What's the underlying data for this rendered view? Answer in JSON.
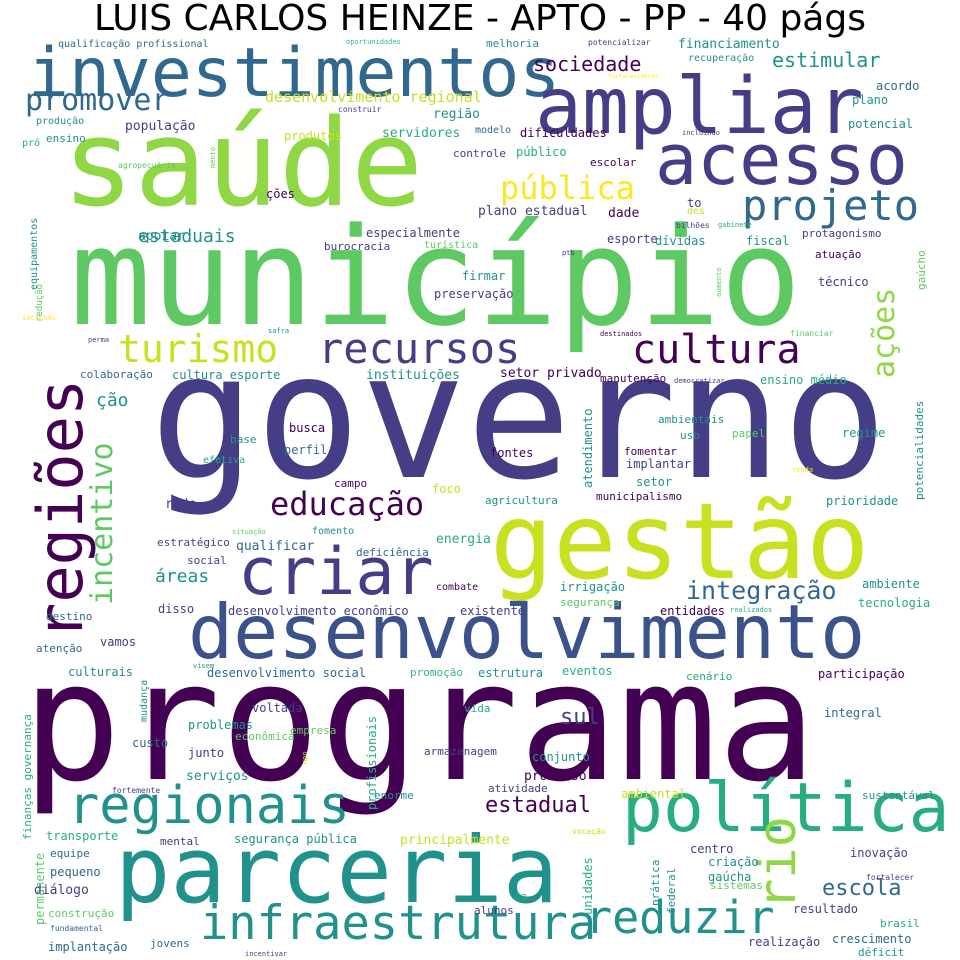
{
  "title": "LUIS CARLOS HEINZE - APTO - PP - 40 págs",
  "colors": {
    "c0": "#440154",
    "c1": "#433e85",
    "c2": "#31688e",
    "c3": "#21918c",
    "c4": "#27ad81",
    "c5": "#5ec962",
    "c6": "#8fd744",
    "c7": "#c8e020",
    "c8": "#fde725",
    "c9": "#35b779",
    "c10": "#3b528b"
  },
  "words": [
    {
      "t": "programa",
      "c": "c0"
    },
    {
      "t": "governo",
      "c": "c1"
    },
    {
      "t": "município",
      "c": "c5"
    },
    {
      "t": "saúde",
      "c": "c6"
    },
    {
      "t": "gestão",
      "c": "c7"
    },
    {
      "t": "parceria",
      "c": "c3"
    },
    {
      "t": "desenvolvimento",
      "c": "c10"
    },
    {
      "t": "investimentos",
      "c": "c2"
    },
    {
      "t": "ampliar",
      "c": "c1"
    },
    {
      "t": "acesso",
      "c": "c1"
    },
    {
      "t": "política",
      "c": "c4"
    },
    {
      "t": "criar",
      "c": "c1"
    },
    {
      "t": "regiões",
      "c": "c0"
    },
    {
      "t": "regionais",
      "c": "c3"
    },
    {
      "t": "infraestrutura",
      "c": "c3"
    },
    {
      "t": "reduzir",
      "c": "c3"
    },
    {
      "t": "projeto",
      "c": "c2"
    },
    {
      "t": "recursos",
      "c": "c1"
    },
    {
      "t": "cultura",
      "c": "c0"
    },
    {
      "t": "turismo",
      "c": "c7"
    },
    {
      "t": "educação",
      "c": "c0"
    },
    {
      "t": "pública",
      "c": "c8"
    },
    {
      "t": "promover",
      "c": "c2"
    },
    {
      "t": "incentivo",
      "c": "c5"
    },
    {
      "t": "ações",
      "c": "c6"
    },
    {
      "t": "rio",
      "c": "c6"
    },
    {
      "t": "integração",
      "c": "c2"
    },
    {
      "t": "estadual",
      "c": "c0"
    },
    {
      "t": "escola",
      "c": "c2"
    },
    {
      "t": "sul",
      "c": "c1"
    },
    {
      "t": "sociedade",
      "c": "c0"
    },
    {
      "t": "estimular",
      "c": "c3"
    },
    {
      "t": "estaduais",
      "c": "c3"
    },
    {
      "t": "áreas",
      "c": "c3"
    },
    {
      "t": "ção",
      "c": "c3"
    },
    {
      "t": "desenvolvimento regional",
      "c": "c7"
    },
    {
      "t": "financiamento",
      "c": "c3"
    },
    {
      "t": "população",
      "c": "c1"
    },
    {
      "t": "região",
      "c": "c3"
    },
    {
      "t": "servidores",
      "c": "c4"
    },
    {
      "t": "melhoria",
      "c": "c3"
    },
    {
      "t": "modelo",
      "c": "c2"
    },
    {
      "t": "dificuldades",
      "c": "c0"
    },
    {
      "t": "qualificação profissional",
      "c": "c2"
    },
    {
      "t": "oportunidades",
      "c": "c9"
    },
    {
      "t": "potencializar",
      "c": "c1"
    },
    {
      "t": "recuperação",
      "c": "c3"
    },
    {
      "t": "fortalecimento",
      "c": "c8"
    },
    {
      "t": "acordo",
      "c": "c2"
    },
    {
      "t": "plano",
      "c": "c3"
    },
    {
      "t": "potencial",
      "c": "c3"
    },
    {
      "t": "incluindo",
      "c": "c1"
    },
    {
      "t": "construir",
      "c": "c1"
    },
    {
      "t": "produtos",
      "c": "c7"
    },
    {
      "t": "produção",
      "c": "c3"
    },
    {
      "t": "ensino",
      "c": "c3"
    },
    {
      "t": "pró",
      "c": "c4"
    },
    {
      "t": "controle",
      "c": "c1"
    },
    {
      "t": "público",
      "c": "c4"
    },
    {
      "t": "escolar",
      "c": "c0"
    },
    {
      "t": "agropecuária",
      "c": "c5"
    },
    {
      "t": "mento",
      "c": "c5"
    },
    {
      "t": "ções",
      "c": "c0"
    },
    {
      "t": "plano estadual",
      "c": "c1"
    },
    {
      "t": "dade",
      "c": "c0"
    },
    {
      "t": "des",
      "c": "c7"
    },
    {
      "t": "to",
      "c": "c1"
    },
    {
      "t": "equipamentos",
      "c": "c3"
    },
    {
      "t": "apoiar",
      "c": "c3"
    },
    {
      "t": "especialmente",
      "c": "c1"
    },
    {
      "t": "esporte",
      "c": "c1"
    },
    {
      "t": "dívidas",
      "c": "c3"
    },
    {
      "t": "fiscal",
      "c": "c3"
    },
    {
      "t": "protagonismo",
      "c": "c1"
    },
    {
      "t": "burocracia",
      "c": "c1"
    },
    {
      "t": "turística",
      "c": "c5"
    },
    {
      "t": "gabinete",
      "c": "c4"
    },
    {
      "t": "bilhões",
      "c": "c1"
    },
    {
      "t": "atuação",
      "c": "c0"
    },
    {
      "t": "gaúcho",
      "c": "c5"
    },
    {
      "t": "técnico",
      "c": "c1"
    },
    {
      "t": "redução",
      "c": "c5"
    },
    {
      "t": "ptb",
      "c": "c1"
    },
    {
      "t": "firmar",
      "c": "c3"
    },
    {
      "t": "preservação",
      "c": "c1"
    },
    {
      "t": "oferta",
      "c": "c5"
    },
    {
      "t": "aumento",
      "c": "c5"
    },
    {
      "t": "inclusão",
      "c": "c8"
    },
    {
      "t": "safra",
      "c": "c3"
    },
    {
      "t": "perma",
      "c": "c1"
    },
    {
      "t": "destinados",
      "c": "c0"
    },
    {
      "t": "financiar",
      "c": "c5"
    },
    {
      "t": "colaboração",
      "c": "c2"
    },
    {
      "t": "cultura esporte",
      "c": "c3"
    },
    {
      "t": "instituições",
      "c": "c3"
    },
    {
      "t": "setor privado",
      "c": "c0"
    },
    {
      "t": "manutenção",
      "c": "c0"
    },
    {
      "t": "democratizar",
      "c": "c1"
    },
    {
      "t": "ensino médio",
      "c": "c4"
    },
    {
      "t": "potencialidades",
      "c": "c3"
    },
    {
      "t": "atendimento",
      "c": "c3"
    },
    {
      "t": "ambientais",
      "c": "c3"
    },
    {
      "t": "uso",
      "c": "c3"
    },
    {
      "t": "busca",
      "c": "c0"
    },
    {
      "t": "perfil",
      "c": "c2"
    },
    {
      "t": "base",
      "c": "c3"
    },
    {
      "t": "efetiva",
      "c": "c4"
    },
    {
      "t": "papel",
      "c": "c5"
    },
    {
      "t": "regime",
      "c": "c3"
    },
    {
      "t": "fontes",
      "c": "c0"
    },
    {
      "t": "fomentar",
      "c": "c0"
    },
    {
      "t": "implantar",
      "c": "c1"
    },
    {
      "t": "renda",
      "c": "c8"
    },
    {
      "t": "campo",
      "c": "c0"
    },
    {
      "t": "foco",
      "c": "c7"
    },
    {
      "t": "setor",
      "c": "c3"
    },
    {
      "t": "municipalismo",
      "c": "c0"
    },
    {
      "t": "agricultura",
      "c": "c3"
    },
    {
      "t": "prioridade",
      "c": "c3"
    },
    {
      "t": "rede",
      "c": "c1"
    },
    {
      "t": "fomento",
      "c": "c3"
    },
    {
      "t": "situação",
      "c": "c5"
    },
    {
      "t": "energia",
      "c": "c4"
    },
    {
      "t": "estratégico",
      "c": "c1"
    },
    {
      "t": "qualificar",
      "c": "c2"
    },
    {
      "t": "deficiência",
      "c": "c2"
    },
    {
      "t": "social",
      "c": "c1"
    },
    {
      "t": "combate",
      "c": "c0"
    },
    {
      "t": "irrigação",
      "c": "c3"
    },
    {
      "t": "segurança",
      "c": "c5"
    },
    {
      "t": "entidades",
      "c": "c0"
    },
    {
      "t": "realizados",
      "c": "c4"
    },
    {
      "t": "ambiente",
      "c": "c3"
    },
    {
      "t": "tecnologia",
      "c": "c4"
    },
    {
      "t": "destino",
      "c": "c2"
    },
    {
      "t": "disso",
      "c": "c1"
    },
    {
      "t": "desenvolvimento econômico",
      "c": "c1"
    },
    {
      "t": "existente",
      "c": "c1"
    },
    {
      "t": "vamos",
      "c": "c1"
    },
    {
      "t": "atenção",
      "c": "c2"
    },
    {
      "t": "visem",
      "c": "c3"
    },
    {
      "t": "culturais",
      "c": "c3"
    },
    {
      "t": "desenvolvimento social",
      "c": "c2"
    },
    {
      "t": "promoção",
      "c": "c9"
    },
    {
      "t": "estrutura",
      "c": "c3"
    },
    {
      "t": "eventos",
      "c": "c4"
    },
    {
      "t": "cenário",
      "c": "c4"
    },
    {
      "t": "participação",
      "c": "c0"
    },
    {
      "t": "finanças governança",
      "c": "c4"
    },
    {
      "t": "mudança",
      "c": "c3"
    },
    {
      "t": "voltada",
      "c": "c1"
    },
    {
      "t": "vida",
      "c": "c4"
    },
    {
      "t": "integral",
      "c": "c2"
    },
    {
      "t": "problemas",
      "c": "c3"
    },
    {
      "t": "econômica",
      "c": "c5"
    },
    {
      "t": "empresa",
      "c": "c5"
    },
    {
      "t": "junto",
      "c": "c1"
    },
    {
      "t": "profissionais",
      "c": "c4"
    },
    {
      "t": "armazenagem",
      "c": "c1"
    },
    {
      "t": "conjunto",
      "c": "c3"
    },
    {
      "t": "custo",
      "c": "c2"
    },
    {
      "t": "opo",
      "c": "c7"
    },
    {
      "t": "serviços",
      "c": "c3"
    },
    {
      "t": "processo",
      "c": "c0"
    },
    {
      "t": "atividade",
      "c": "c1"
    },
    {
      "t": "fortemente",
      "c": "c1"
    },
    {
      "t": "enorme",
      "c": "c3"
    },
    {
      "t": "ambiental",
      "c": "c7"
    },
    {
      "t": "sustentável",
      "c": "c3"
    },
    {
      "t": "transporte",
      "c": "c4"
    },
    {
      "t": "mental",
      "c": "c1"
    },
    {
      "t": "segurança pública",
      "c": "c3"
    },
    {
      "t": "principalmente",
      "c": "c7"
    },
    {
      "t": "vocação",
      "c": "c7"
    },
    {
      "t": "centro",
      "c": "c1"
    },
    {
      "t": "inovação",
      "c": "c1"
    },
    {
      "t": "equipe",
      "c": "c2"
    },
    {
      "t": "pequeno",
      "c": "c2"
    },
    {
      "t": "criação",
      "c": "c3"
    },
    {
      "t": "gaúcha",
      "c": "c3"
    },
    {
      "t": "sistemas",
      "c": "c5"
    },
    {
      "t": "prática",
      "c": "c3"
    },
    {
      "t": "permanente",
      "c": "c5"
    },
    {
      "t": "diálogo",
      "c": "c1"
    },
    {
      "t": "unidades",
      "c": "c4"
    },
    {
      "t": "resultado",
      "c": "c1"
    },
    {
      "t": "fortalecer",
      "c": "c1"
    },
    {
      "t": "ca",
      "c": "c4"
    },
    {
      "t": "federal",
      "c": "c3"
    },
    {
      "t": "construção",
      "c": "c5"
    },
    {
      "t": "alunos",
      "c": "c1"
    },
    {
      "t": "brasil",
      "c": "c4"
    },
    {
      "t": "fundamental",
      "c": "c2"
    },
    {
      "t": "implantação",
      "c": "c2"
    },
    {
      "t": "jovens",
      "c": "c2"
    },
    {
      "t": "incentivar",
      "c": "c1"
    },
    {
      "t": "realização",
      "c": "c1"
    },
    {
      "t": "crescimento",
      "c": "c2"
    },
    {
      "t": "déficit",
      "c": "c3"
    }
  ]
}
